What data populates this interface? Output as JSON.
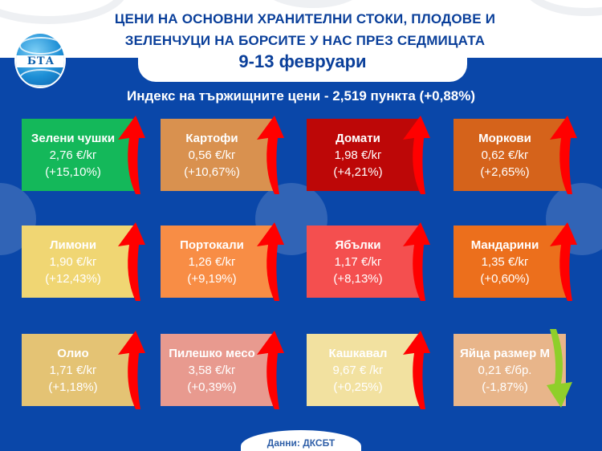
{
  "header": {
    "title_line1": "ЦЕНИ НА ОСНОВНИ ХРАНИТЕЛНИ СТОКИ, ПЛОДОВЕ И",
    "title_line2": "ЗЕЛЕНЧУЦИ НА БОРСИТЕ У НАС ПРЕЗ СЕДМИЦАТА",
    "date": "9-13 февруари",
    "logo_text": "БТА"
  },
  "index_line": "Индекс на тържищните цени - 2,519 пункта (+0,88%)",
  "colors": {
    "background": "#0a47a9",
    "title": "#0a3f9a",
    "arrow_up": "#ff0000",
    "arrow_down": "#8fcf2a"
  },
  "items": [
    {
      "name": "Зелени чушки",
      "price": "2,76 €/kг",
      "change": "(+15,10%)",
      "color": "#14b85a",
      "direction": "up"
    },
    {
      "name": "Картофи",
      "price": "0,56 €/kг",
      "change": "(+10,67%)",
      "color": "#d9914f",
      "direction": "up"
    },
    {
      "name": "Домати",
      "price": "1,98 €/kг",
      "change": "(+4,21%)",
      "color": "#bd0707",
      "direction": "up"
    },
    {
      "name": "Моркови",
      "price": "0,62 €/kг",
      "change": "(+2,65%)",
      "color": "#d5631b",
      "direction": "up"
    },
    {
      "name": "Лимони",
      "price": "1,90 €/kг",
      "change": "(+12,43%)",
      "color": "#f0d673",
      "direction": "up"
    },
    {
      "name": "Портокали",
      "price": "1,26 €/kг",
      "change": "(+9,19%)",
      "color": "#f88d45",
      "direction": "up"
    },
    {
      "name": "Ябълки",
      "price": "1,17 €/kг",
      "change": "(+8,13%)",
      "color": "#f44f4f",
      "direction": "up"
    },
    {
      "name": "Мандарини",
      "price": "1,35 €/kг",
      "change": "(+0,60%)",
      "color": "#ec6f1c",
      "direction": "up"
    },
    {
      "name": "Олио",
      "price": "1,71 €/kг",
      "change": "(+1,18%)",
      "color": "#e4c374",
      "direction": "up"
    },
    {
      "name": "Пилешко месо",
      "price": "3,58 €/kг",
      "change": "(+0,39%)",
      "color": "#e89a8f",
      "direction": "up"
    },
    {
      "name": "Кашкавал",
      "price": "9,67 € /kг",
      "change": "(+0,25%)",
      "color": "#f2e1a0",
      "direction": "up"
    },
    {
      "name": "Яйца размер М",
      "price": "0,21 €/бр.",
      "change": "(-1,87%)",
      "color": "#e8b58a",
      "direction": "down"
    }
  ],
  "footer": "Данни: ДКСБТ"
}
